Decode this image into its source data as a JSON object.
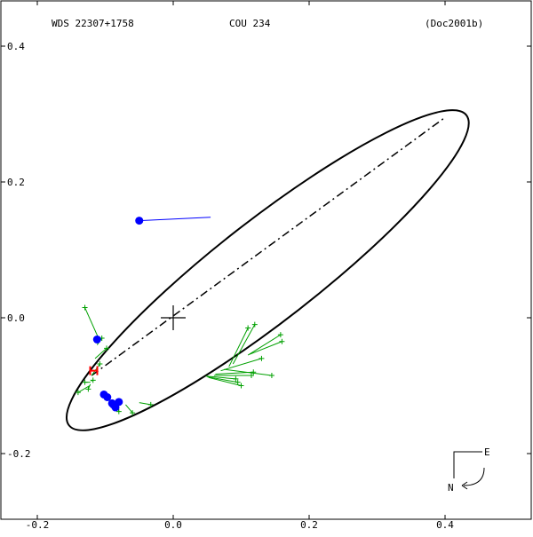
{
  "header": {
    "left": "WDS 22307+1758",
    "center": "COU 234",
    "right": "(Doc2001b)"
  },
  "compass": {
    "east": "E",
    "north": "N"
  },
  "chart_data": {
    "type": "scatter",
    "title": "",
    "xlabel": "",
    "ylabel": "",
    "xlim": [
      -0.2,
      0.5
    ],
    "ylim": [
      -0.3,
      0.4
    ],
    "x_ticks": [
      -0.2,
      0.0,
      0.2,
      0.4
    ],
    "y_ticks": [
      0.4,
      0.2,
      0.0,
      -0.2
    ],
    "x_tick_labels": [
      "-0.2",
      "0.0",
      "0.2",
      "0.4"
    ],
    "y_tick_labels": [
      "0.4",
      "0.2",
      "0.0",
      "-0.2"
    ],
    "grid": false,
    "primary": {
      "x": 0.0,
      "y": 0.0
    },
    "orbit": {
      "center": [
        0.139,
        0.07
      ],
      "semi_major": 0.371,
      "semi_minor": 0.074,
      "angle_deg": 38,
      "line_of_nodes": [
        [
          -0.12,
          -0.085
        ],
        [
          0.4,
          0.295
        ]
      ]
    },
    "speckle_observations": {
      "color": "#0000ff",
      "points": [
        {
          "x": -0.05,
          "y": 0.143,
          "fx": 0.055,
          "fy": 0.148
        },
        {
          "x": -0.112,
          "y": -0.032,
          "fx": -0.11,
          "fy": -0.03
        },
        {
          "x": -0.102,
          "y": -0.113,
          "fx": -0.098,
          "fy": -0.112
        },
        {
          "x": -0.097,
          "y": -0.117,
          "fx": -0.095,
          "fy": -0.116
        },
        {
          "x": -0.09,
          "y": -0.126,
          "fx": -0.089,
          "fy": -0.124
        },
        {
          "x": -0.085,
          "y": -0.132,
          "fx": -0.084,
          "fy": -0.127
        },
        {
          "x": -0.08,
          "y": -0.124,
          "fx": -0.083,
          "fy": -0.126
        },
        {
          "x": -0.088,
          "y": -0.128,
          "fx": -0.087,
          "fy": -0.125
        }
      ]
    },
    "visual_observations": {
      "color": "#00a000",
      "points": [
        {
          "x": -0.13,
          "y": 0.015,
          "fx": -0.11,
          "fy": -0.03
        },
        {
          "x": -0.105,
          "y": -0.03,
          "fx": -0.112,
          "fy": -0.04
        },
        {
          "x": -0.098,
          "y": -0.045,
          "fx": -0.115,
          "fy": -0.06
        },
        {
          "x": -0.108,
          "y": -0.068,
          "fx": -0.12,
          "fy": -0.085
        },
        {
          "x": -0.14,
          "y": -0.11,
          "fx": -0.123,
          "fy": -0.1
        },
        {
          "x": -0.125,
          "y": -0.105,
          "fx": -0.122,
          "fy": -0.098
        },
        {
          "x": -0.118,
          "y": -0.092,
          "fx": -0.121,
          "fy": -0.093
        },
        {
          "x": -0.13,
          "y": -0.095,
          "fx": -0.122,
          "fy": -0.095
        },
        {
          "x": -0.08,
          "y": -0.138,
          "fx": -0.082,
          "fy": -0.128
        },
        {
          "x": -0.06,
          "y": -0.14,
          "fx": -0.07,
          "fy": -0.128
        },
        {
          "x": -0.033,
          "y": -0.128,
          "fx": -0.05,
          "fy": -0.125
        },
        {
          "x": 0.095,
          "y": -0.095,
          "fx": 0.05,
          "fy": -0.087
        },
        {
          "x": 0.1,
          "y": -0.1,
          "fx": 0.052,
          "fy": -0.088
        },
        {
          "x": 0.092,
          "y": -0.09,
          "fx": 0.048,
          "fy": -0.086
        },
        {
          "x": 0.115,
          "y": -0.085,
          "fx": 0.06,
          "fy": -0.085
        },
        {
          "x": 0.118,
          "y": -0.08,
          "fx": 0.062,
          "fy": -0.083
        },
        {
          "x": 0.13,
          "y": -0.06,
          "fx": 0.07,
          "fy": -0.078
        },
        {
          "x": 0.145,
          "y": -0.085,
          "fx": 0.075,
          "fy": -0.076
        },
        {
          "x": 0.11,
          "y": -0.015,
          "fx": 0.082,
          "fy": -0.072
        },
        {
          "x": 0.12,
          "y": -0.01,
          "fx": 0.088,
          "fy": -0.068
        },
        {
          "x": 0.158,
          "y": -0.025,
          "fx": 0.11,
          "fy": -0.055
        },
        {
          "x": 0.16,
          "y": -0.035,
          "fx": 0.112,
          "fy": -0.054
        }
      ]
    },
    "periastron_marker": {
      "x": -0.117,
      "y": -0.078,
      "color": "#ff0000"
    }
  }
}
